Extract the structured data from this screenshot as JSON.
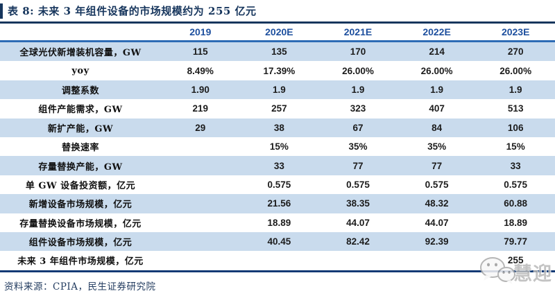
{
  "title": "表 8: 未来 3 年组件设备的市场规模约为 255 亿元",
  "table": {
    "columns": [
      "2019",
      "2020E",
      "2021E",
      "2022E",
      "2023E"
    ],
    "rows": [
      {
        "label": "全球光伏新增装机容量，GW",
        "values": [
          "115",
          "135",
          "170",
          "214",
          "270"
        ],
        "shaded": true
      },
      {
        "label": "yoy",
        "values": [
          "8.49%",
          "17.39%",
          "26.00%",
          "26.00%",
          "26.00%"
        ],
        "shaded": false
      },
      {
        "label": "调整系数",
        "values": [
          "1.90",
          "1.9",
          "1.9",
          "1.9",
          "1.9"
        ],
        "shaded": true
      },
      {
        "label": "组件产能需求，GW",
        "values": [
          "219",
          "257",
          "323",
          "407",
          "513"
        ],
        "shaded": false
      },
      {
        "label": "新扩产能，GW",
        "values": [
          "29",
          "38",
          "67",
          "84",
          "106"
        ],
        "shaded": true
      },
      {
        "label": "替换速率",
        "values": [
          "",
          "15%",
          "35%",
          "35%",
          "15%"
        ],
        "shaded": false
      },
      {
        "label": "存量替换产能，GW",
        "values": [
          "",
          "33",
          "77",
          "77",
          "33"
        ],
        "shaded": true
      },
      {
        "label": "单 GW 设备投资额，亿元",
        "values": [
          "",
          "0.575",
          "0.575",
          "0.575",
          "0.575"
        ],
        "shaded": false
      },
      {
        "label": "新增设备市场规模，亿元",
        "values": [
          "",
          "21.56",
          "38.35",
          "48.32",
          "60.88"
        ],
        "shaded": true
      },
      {
        "label": "存量替换设备市场规模，亿元",
        "values": [
          "",
          "18.89",
          "44.07",
          "44.07",
          "18.89"
        ],
        "shaded": false
      },
      {
        "label": "组件设备市场规模，亿元",
        "values": [
          "",
          "40.45",
          "82.42",
          "92.39",
          "79.77"
        ],
        "shaded": true
      },
      {
        "label": "未来 3 年组件市场规模，亿元",
        "values": [
          "",
          "",
          "",
          "",
          "255"
        ],
        "shaded": false
      }
    ]
  },
  "source": "资料来源：CPIA，民生证券研究院",
  "watermark": {
    "icon": "wechat-icon",
    "text": "慧迎"
  },
  "colors": {
    "title_navy": "#17365d",
    "header_blue": "#1d4f9e",
    "header_rule_blue": "#2d6cb5",
    "bottom_rule_navy": "#123a75",
    "row_shade_blue": "#c9dbed",
    "watermark_gray": "#b9b9b9"
  }
}
